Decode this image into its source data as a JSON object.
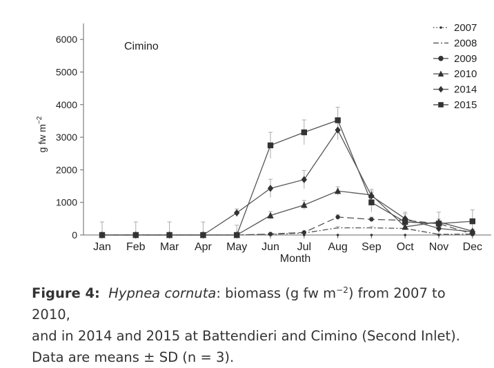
{
  "chart_data": {
    "type": "line",
    "panel_label": "Cimino",
    "xlabel": "Month",
    "ylabel": "g fw m",
    "ylabel_superscript": "−2",
    "categories": [
      "Jan",
      "Feb",
      "Mar",
      "Apr",
      "May",
      "Jun",
      "Jul",
      "Aug",
      "Sep",
      "Oct",
      "Nov",
      "Dec"
    ],
    "ylim": [
      0,
      6500
    ],
    "yticks": [
      0,
      1000,
      2000,
      3000,
      4000,
      5000,
      6000
    ],
    "grid": false,
    "legend_position": "top-right",
    "series": [
      {
        "name": "2007",
        "marker": "dot",
        "dash": "dotted",
        "values": [
          0,
          0,
          0,
          0,
          0,
          0,
          0,
          0,
          0,
          0,
          0,
          0
        ],
        "errors": [
          0,
          0,
          0,
          0,
          0,
          0,
          0,
          0,
          0,
          0,
          0,
          0
        ]
      },
      {
        "name": "2008",
        "marker": "none",
        "dash": "dashdot",
        "values": [
          0,
          0,
          0,
          0,
          0,
          20,
          60,
          220,
          220,
          200,
          20,
          30
        ],
        "errors": [
          0,
          0,
          0,
          0,
          0,
          10,
          20,
          40,
          40,
          40,
          10,
          10
        ]
      },
      {
        "name": "2009",
        "marker": "circle",
        "dash": "longdash",
        "values": [
          0,
          0,
          0,
          0,
          0,
          30,
          80,
          550,
          480,
          450,
          350,
          30
        ],
        "errors": [
          0,
          0,
          0,
          0,
          0,
          15,
          25,
          80,
          70,
          60,
          50,
          20
        ]
      },
      {
        "name": "2010",
        "marker": "triangle",
        "dash": "solid",
        "values": [
          0,
          0,
          0,
          0,
          0,
          600,
          920,
          1350,
          1230,
          250,
          400,
          120
        ],
        "errors": [
          0,
          0,
          0,
          0,
          0,
          120,
          140,
          130,
          120,
          80,
          90,
          60
        ]
      },
      {
        "name": "2014",
        "marker": "diamond",
        "dash": "solid",
        "values": [
          0,
          0,
          0,
          0,
          680,
          1430,
          1700,
          3220,
          1200,
          500,
          200,
          100
        ],
        "errors": [
          0,
          0,
          0,
          0,
          120,
          280,
          280,
          300,
          200,
          200,
          100,
          60
        ]
      },
      {
        "name": "2015",
        "marker": "square",
        "dash": "solid",
        "values": [
          0,
          0,
          0,
          0,
          0,
          2750,
          3150,
          3520,
          1000,
          400,
          350,
          420
        ],
        "errors": [
          400,
          400,
          400,
          400,
          300,
          400,
          380,
          400,
          300,
          250,
          350,
          350
        ]
      }
    ]
  },
  "caption": {
    "figure_label": "Figure 4:",
    "species": "Hypnea cornuta",
    "line1_after_species": ": biomass (g fw m",
    "line1_superscript": "−2",
    "line1_end": ") from 2007 to 2010,",
    "line2": "and in 2014 and 2015 at Battendieri and Cimino (Second Inlet).",
    "line3": "Data are means ± SD (n = 3)."
  }
}
